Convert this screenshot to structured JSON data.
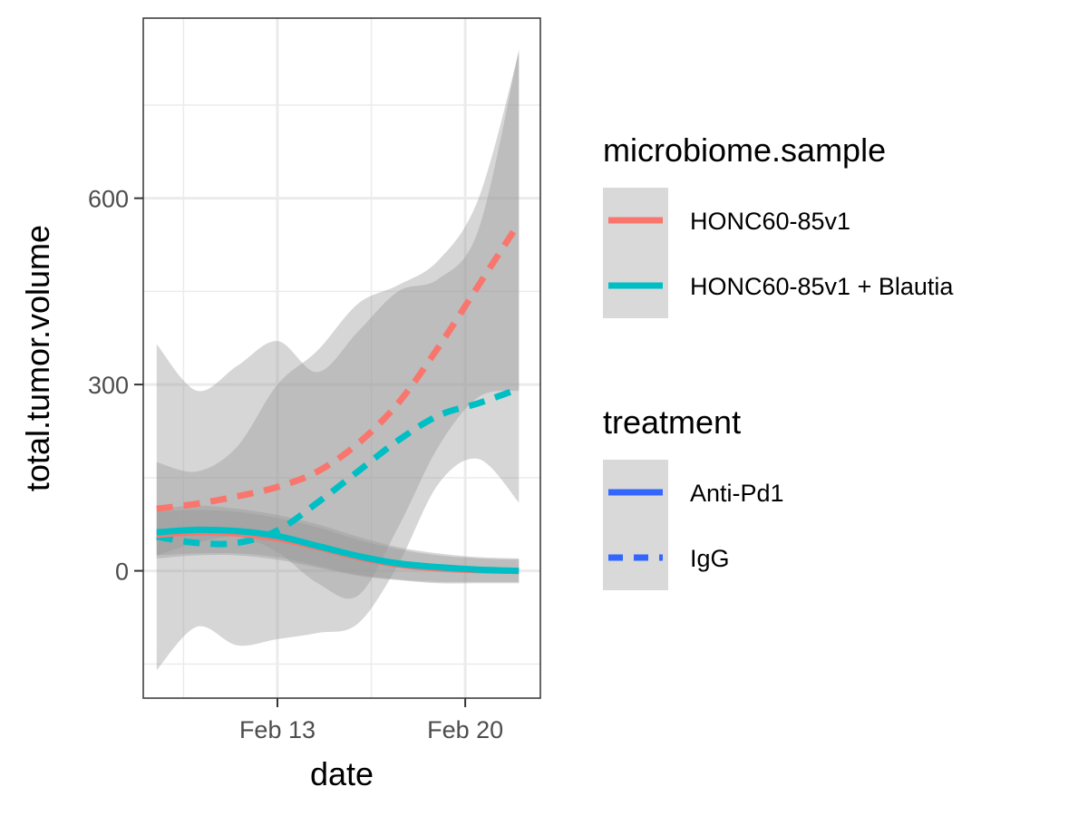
{
  "chart_data": {
    "type": "line",
    "xlabel": "date",
    "ylabel": "total.tumor.volume",
    "xlim": [
      8.0,
      22.8
    ],
    "ylim": [
      -205,
      890
    ],
    "x_ticks": [
      {
        "value": 13,
        "label": "Feb 13"
      },
      {
        "value": 20,
        "label": "Feb 20"
      }
    ],
    "x_minor_gridlines": [
      9.5,
      16.5
    ],
    "y_ticks": [
      {
        "value": 0,
        "label": "0"
      },
      {
        "value": 300,
        "label": "300"
      },
      {
        "value": 600,
        "label": "600"
      }
    ],
    "y_minor_gridlines": [
      -150,
      150,
      450,
      750
    ],
    "grid": true,
    "x_unit_note": "days in February",
    "series": [
      {
        "name": "HONC60-85v1 / IgG",
        "microbiome_sample": "HONC60-85v1",
        "treatment": "IgG",
        "x": [
          8.5,
          10,
          11.5,
          13,
          14.5,
          16,
          17.5,
          19,
          20.5,
          22
        ],
        "y": [
          100,
          108,
          120,
          135,
          160,
          205,
          270,
          360,
          460,
          560
        ],
        "band_upper": [
          175,
          160,
          200,
          300,
          355,
          430,
          460,
          500,
          600,
          835
        ],
        "band_lower": [
          25,
          45,
          55,
          30,
          -20,
          -40,
          70,
          200,
          280,
          290
        ]
      },
      {
        "name": "HONC60-85v1 + Blautia / IgG",
        "microbiome_sample": "HONC60-85v1 + Blautia",
        "treatment": "IgG",
        "x": [
          8.5,
          10,
          11.5,
          13,
          14.5,
          16,
          17.5,
          19,
          20.5,
          22
        ],
        "y": [
          55,
          45,
          45,
          65,
          110,
          160,
          210,
          250,
          270,
          293
        ],
        "band_upper": [
          365,
          290,
          330,
          370,
          320,
          385,
          450,
          470,
          550,
          840
        ],
        "band_lower": [
          -160,
          -90,
          -120,
          -110,
          -100,
          -85,
          10,
          140,
          180,
          110
        ]
      },
      {
        "name": "HONC60-85v1 / Anti-Pd1",
        "microbiome_sample": "HONC60-85v1",
        "treatment": "Anti-Pd1",
        "x": [
          8.5,
          10,
          11.5,
          13,
          14.5,
          16,
          17.5,
          19,
          20.5,
          22
        ],
        "y": [
          58,
          62,
          60,
          52,
          38,
          22,
          10,
          4,
          1,
          0
        ],
        "band_upper": [
          95,
          98,
          95,
          85,
          70,
          50,
          35,
          25,
          20,
          18
        ],
        "band_lower": [
          20,
          25,
          25,
          18,
          5,
          -8,
          -15,
          -20,
          -20,
          -20
        ]
      },
      {
        "name": "HONC60-85v1 + Blautia / Anti-Pd1",
        "microbiome_sample": "HONC60-85v1 + Blautia",
        "treatment": "Anti-Pd1",
        "x": [
          8.5,
          10,
          11.5,
          13,
          14.5,
          16,
          17.5,
          19,
          20.5,
          22
        ],
        "y": [
          62,
          66,
          64,
          56,
          40,
          24,
          12,
          6,
          2,
          0
        ],
        "band_upper": [
          100,
          105,
          100,
          90,
          75,
          55,
          38,
          28,
          22,
          20
        ],
        "band_lower": [
          25,
          28,
          28,
          22,
          8,
          -6,
          -14,
          -18,
          -18,
          -18
        ]
      }
    ],
    "legends": [
      {
        "title": "microbiome.sample",
        "items": [
          {
            "label": "HONC60-85v1",
            "color": "#F8766D",
            "line": "solid"
          },
          {
            "label": "HONC60-85v1 + Blautia",
            "color": "#00BFC4",
            "line": "solid"
          }
        ]
      },
      {
        "title": "treatment",
        "items": [
          {
            "label": "Anti-Pd1",
            "color": "#3366FF",
            "line": "solid"
          },
          {
            "label": "IgG",
            "color": "#3366FF",
            "line": "dashed"
          }
        ]
      }
    ],
    "colors": {
      "HONC60-85v1": "#F8766D",
      "HONC60-85v1 + Blautia": "#00BFC4",
      "band": "#999999",
      "grid": "#EBEBEB",
      "panel_border": "#333333",
      "legend_key_bg": "#D9D9D9"
    }
  }
}
